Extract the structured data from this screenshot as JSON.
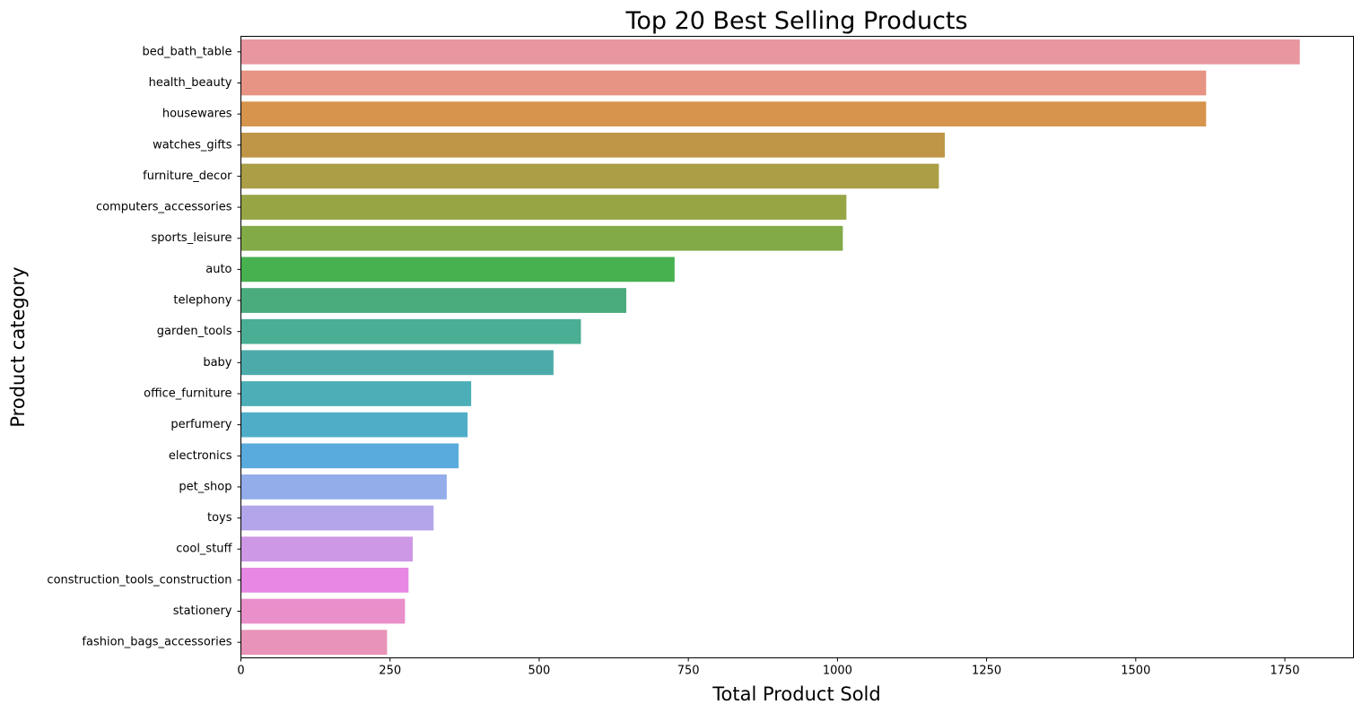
{
  "chart_data": {
    "type": "bar",
    "orientation": "horizontal",
    "title": "Top 20 Best Selling Products",
    "xlabel": "Total Product Sold",
    "ylabel": "Product category",
    "xlim": [
      0,
      1865
    ],
    "xticks": [
      0,
      250,
      500,
      750,
      1000,
      1250,
      1500,
      1750
    ],
    "grid": false,
    "categories": [
      "bed_bath_table",
      "health_beauty",
      "housewares",
      "watches_gifts",
      "furniture_decor",
      "computers_accessories",
      "sports_leisure",
      "auto",
      "telephony",
      "garden_tools",
      "baby",
      "office_furniture",
      "perfumery",
      "electronics",
      "pet_shop",
      "toys",
      "cool_stuff",
      "construction_tools_construction",
      "stationery",
      "fashion_bags_accessories"
    ],
    "values": [
      1775,
      1618,
      1618,
      1180,
      1170,
      1015,
      1009,
      727,
      646,
      570,
      524,
      386,
      380,
      365,
      345,
      323,
      288,
      281,
      275,
      245
    ],
    "colors": [
      "#e8969f",
      "#e79484",
      "#d6944d",
      "#bf9648",
      "#aa9e46",
      "#97a545",
      "#82aa47",
      "#47b14f",
      "#4aab7c",
      "#4aae95",
      "#4cabaa",
      "#4caeb7",
      "#4fadc8",
      "#58abdc",
      "#93acea",
      "#b4a5ea",
      "#cd98e5",
      "#e688e4",
      "#e98fca",
      "#e893b8"
    ]
  }
}
